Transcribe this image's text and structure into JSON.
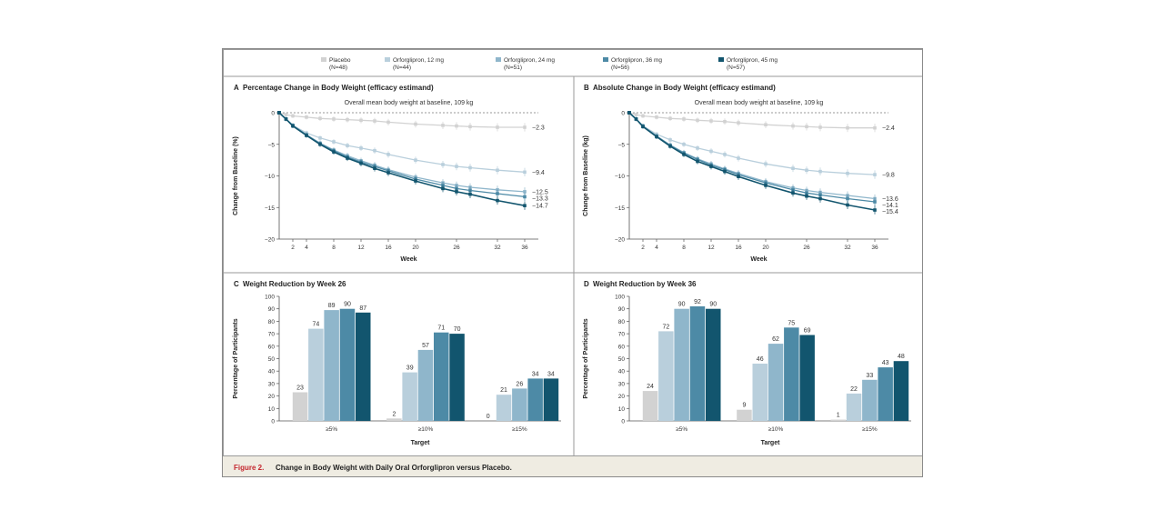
{
  "chart_data": {
    "legend": [
      {
        "name": "Placebo",
        "n": "(N=48)",
        "color": "#d2d2d2"
      },
      {
        "name": "Orforglipron, 12 mg",
        "n": "(N=44)",
        "color": "#b9cfdc"
      },
      {
        "name": "Orforglipron, 24 mg",
        "n": "(N=51)",
        "color": "#8fb6cb"
      },
      {
        "name": "Orforglipron, 36 mg",
        "n": "(N=56)",
        "color": "#4d8aa6"
      },
      {
        "name": "Orforglipron, 45 mg",
        "n": "(N=57)",
        "color": "#12556e"
      }
    ],
    "panels": [
      {
        "letter": "A",
        "type": "line",
        "title": "Percentage Change in Body Weight (efficacy estimand)",
        "subtitle": "Overall mean body weight at baseline, 109 kg",
        "xlabel": "Week",
        "ylabel": "Change from Baseline (%)",
        "xticks": [
          2,
          4,
          8,
          12,
          16,
          20,
          26,
          32,
          36
        ],
        "yticks": [
          0,
          -5,
          -10,
          -15,
          -20
        ],
        "xlim": [
          0,
          38
        ],
        "ylim": [
          -20,
          0
        ],
        "x": [
          0,
          1,
          2,
          4,
          6,
          8,
          10,
          12,
          14,
          16,
          20,
          24,
          26,
          28,
          32,
          36
        ],
        "series": [
          {
            "name": "Placebo",
            "values": [
              0,
              -0.3,
              -0.5,
              -0.7,
              -0.9,
              -1.0,
              -1.1,
              -1.2,
              -1.3,
              -1.5,
              -1.8,
              -2.0,
              -2.1,
              -2.2,
              -2.3,
              -2.3
            ]
          },
          {
            "name": "Orforglipron, 12 mg",
            "values": [
              0,
              -1.0,
              -2.0,
              -3.2,
              -4.0,
              -4.6,
              -5.2,
              -5.6,
              -6.0,
              -6.6,
              -7.5,
              -8.2,
              -8.5,
              -8.7,
              -9.1,
              -9.4
            ]
          },
          {
            "name": "Orforglipron, 24 mg",
            "values": [
              0,
              -1.0,
              -2.0,
              -3.5,
              -4.8,
              -5.9,
              -6.8,
              -7.6,
              -8.3,
              -9.0,
              -10.2,
              -11.1,
              -11.5,
              -11.8,
              -12.2,
              -12.5
            ]
          },
          {
            "name": "Orforglipron, 36 mg",
            "values": [
              0,
              -1.0,
              -2.0,
              -3.5,
              -4.9,
              -6.0,
              -7.0,
              -7.8,
              -8.5,
              -9.2,
              -10.5,
              -11.5,
              -12.0,
              -12.3,
              -12.8,
              -13.3
            ]
          },
          {
            "name": "Orforglipron, 45 mg",
            "values": [
              0,
              -1.0,
              -2.1,
              -3.6,
              -5.0,
              -6.2,
              -7.2,
              -8.0,
              -8.8,
              -9.5,
              -10.8,
              -12.0,
              -12.5,
              -12.9,
              -13.9,
              -14.7
            ]
          }
        ],
        "end_labels": [
          "−2.3",
          "−9.4",
          "−12.5",
          "−13.3",
          "−14.7"
        ]
      },
      {
        "letter": "B",
        "type": "line",
        "title": "Absolute Change in Body Weight (efficacy estimand)",
        "subtitle": "Overall mean body weight at baseline, 109 kg",
        "xlabel": "Week",
        "ylabel": "Change from Baseline (kg)",
        "xticks": [
          2,
          4,
          8,
          12,
          16,
          20,
          26,
          32,
          36
        ],
        "yticks": [
          0,
          -5,
          -10,
          -15,
          -20
        ],
        "xlim": [
          0,
          38
        ],
        "ylim": [
          -20,
          0
        ],
        "x": [
          0,
          1,
          2,
          4,
          6,
          8,
          10,
          12,
          14,
          16,
          20,
          24,
          26,
          28,
          32,
          36
        ],
        "series": [
          {
            "name": "Placebo",
            "values": [
              0,
              -0.3,
              -0.5,
              -0.7,
              -0.9,
              -1.0,
              -1.2,
              -1.3,
              -1.4,
              -1.6,
              -1.9,
              -2.1,
              -2.2,
              -2.3,
              -2.4,
              -2.4
            ]
          },
          {
            "name": "Orforglipron, 12 mg",
            "values": [
              0,
              -1.0,
              -2.1,
              -3.4,
              -4.3,
              -5.0,
              -5.6,
              -6.1,
              -6.6,
              -7.2,
              -8.1,
              -8.8,
              -9.1,
              -9.3,
              -9.6,
              -9.8
            ]
          },
          {
            "name": "Orforglipron, 24 mg",
            "values": [
              0,
              -1.0,
              -2.1,
              -3.7,
              -5.1,
              -6.3,
              -7.3,
              -8.1,
              -8.9,
              -9.6,
              -10.9,
              -11.9,
              -12.3,
              -12.6,
              -13.1,
              -13.6
            ]
          },
          {
            "name": "Orforglipron, 36 mg",
            "values": [
              0,
              -1.0,
              -2.1,
              -3.7,
              -5.2,
              -6.4,
              -7.4,
              -8.3,
              -9.0,
              -9.8,
              -11.1,
              -12.2,
              -12.7,
              -13.0,
              -13.6,
              -14.1
            ]
          },
          {
            "name": "Orforglipron, 45 mg",
            "values": [
              0,
              -1.0,
              -2.2,
              -3.8,
              -5.3,
              -6.6,
              -7.7,
              -8.5,
              -9.3,
              -10.1,
              -11.5,
              -12.7,
              -13.2,
              -13.6,
              -14.6,
              -15.4
            ]
          }
        ],
        "end_labels": [
          "−2.4",
          "−9.8",
          "−13.6",
          "−14.1",
          "−15.4"
        ]
      },
      {
        "letter": "C",
        "type": "bar",
        "title": "Weight Reduction by Week 26",
        "xlabel": "Target",
        "ylabel": "Percentage of Participants",
        "yticks": [
          0,
          10,
          20,
          30,
          40,
          50,
          60,
          70,
          80,
          90,
          100
        ],
        "ylim": [
          0,
          100
        ],
        "categories": [
          "≥5%",
          "≥10%",
          "≥15%"
        ],
        "series": [
          {
            "name": "Placebo",
            "values": [
              23,
              2,
              0
            ]
          },
          {
            "name": "Orforglipron, 12 mg",
            "values": [
              74,
              39,
              21
            ]
          },
          {
            "name": "Orforglipron, 24 mg",
            "values": [
              89,
              57,
              26
            ]
          },
          {
            "name": "Orforglipron, 36 mg",
            "values": [
              90,
              71,
              34
            ]
          },
          {
            "name": "Orforglipron, 45 mg",
            "values": [
              87,
              70,
              34
            ]
          }
        ]
      },
      {
        "letter": "D",
        "type": "bar",
        "title": "Weight Reduction by Week 36",
        "xlabel": "Target",
        "ylabel": "Percentage of Participants",
        "yticks": [
          0,
          10,
          20,
          30,
          40,
          50,
          60,
          70,
          80,
          90,
          100
        ],
        "ylim": [
          0,
          100
        ],
        "categories": [
          "≥5%",
          "≥10%",
          "≥15%"
        ],
        "series": [
          {
            "name": "Placebo",
            "values": [
              24,
              9,
              1
            ]
          },
          {
            "name": "Orforglipron, 12 mg",
            "values": [
              72,
              46,
              22
            ]
          },
          {
            "name": "Orforglipron, 24 mg",
            "values": [
              90,
              62,
              33
            ]
          },
          {
            "name": "Orforglipron, 36 mg",
            "values": [
              92,
              75,
              43
            ]
          },
          {
            "name": "Orforglipron, 45 mg",
            "values": [
              90,
              69,
              48
            ]
          }
        ]
      }
    ]
  },
  "caption": {
    "label": "Figure 2.",
    "text": "Change in Body Weight with Daily Oral Orforglipron versus Placebo."
  }
}
